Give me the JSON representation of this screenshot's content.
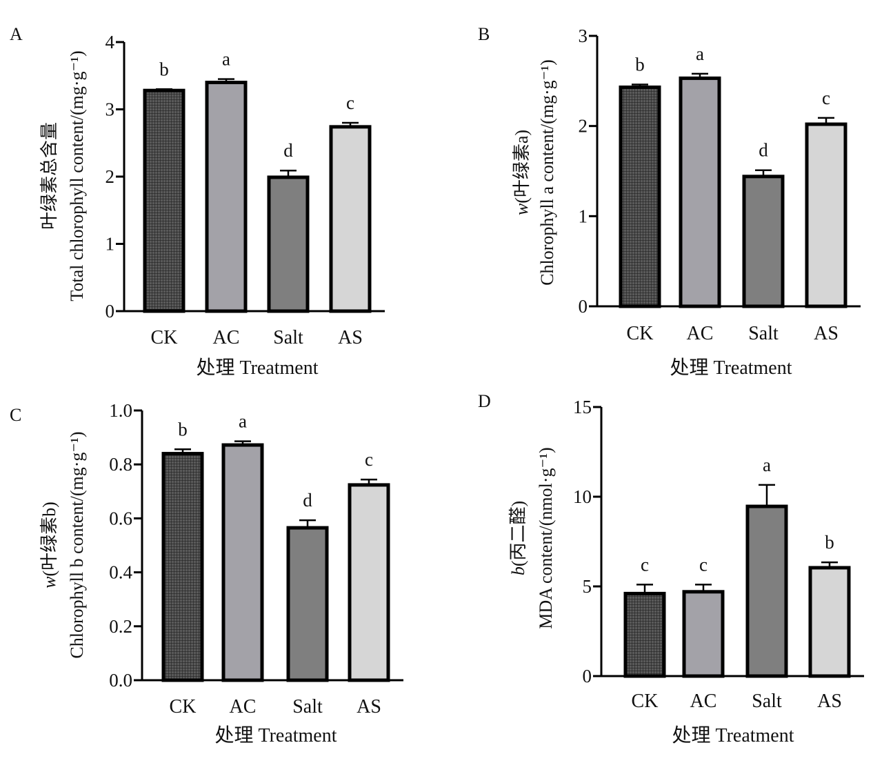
{
  "chart_data": [
    {
      "type": "bar",
      "panel": "A",
      "categories": [
        "CK",
        "AC",
        "Salt",
        "AS"
      ],
      "values": [
        3.28,
        3.4,
        1.99,
        2.74
      ],
      "errors": [
        0.02,
        0.05,
        0.1,
        0.06
      ],
      "significance": [
        "b",
        "a",
        "d",
        "c"
      ],
      "xlabel": "处理 Treatment",
      "ylabel_lines": [
        {
          "var": "",
          "text": "叶绿素总含量"
        },
        {
          "var": "",
          "text": "Total chlorophyll content/(mg·g⁻¹)"
        }
      ],
      "ylim": [
        0,
        4
      ],
      "yticks": [
        "0",
        "1",
        "2",
        "3",
        "4"
      ],
      "ytick_values": [
        0,
        1,
        2,
        3,
        4
      ],
      "grid": false
    },
    {
      "type": "bar",
      "panel": "B",
      "categories": [
        "CK",
        "AC",
        "Salt",
        "AS"
      ],
      "values": [
        2.43,
        2.53,
        1.44,
        2.02
      ],
      "errors": [
        0.03,
        0.05,
        0.07,
        0.07
      ],
      "significance": [
        "b",
        "a",
        "d",
        "c"
      ],
      "xlabel": "处理 Treatment",
      "ylabel_lines": [
        {
          "var": "w",
          "text": "(叶绿素a)"
        },
        {
          "var": "",
          "text": "Chlorophyll a content/(mg·g⁻¹)"
        }
      ],
      "ylim": [
        0,
        3
      ],
      "yticks": [
        "0",
        "1",
        "2",
        "3"
      ],
      "ytick_values": [
        0,
        1,
        2,
        3
      ],
      "grid": false
    },
    {
      "type": "bar",
      "panel": "C",
      "categories": [
        "CK",
        "AC",
        "Salt",
        "AS"
      ],
      "values": [
        0.84,
        0.872,
        0.565,
        0.724
      ],
      "errors": [
        0.016,
        0.014,
        0.028,
        0.02
      ],
      "significance": [
        "b",
        "a",
        "d",
        "c"
      ],
      "xlabel": "处理 Treatment",
      "ylabel_lines": [
        {
          "var": "w",
          "text": "(叶绿素b)"
        },
        {
          "var": "",
          "text": "Chlorophyll b content/(mg·g⁻¹)"
        }
      ],
      "ylim": [
        0,
        1.0
      ],
      "yticks": [
        "0.0",
        "0.2",
        "0.4",
        "0.6",
        "0.8",
        "1.0"
      ],
      "ytick_values": [
        0,
        0.2,
        0.4,
        0.6,
        0.8,
        1.0
      ],
      "grid": false
    },
    {
      "type": "bar",
      "panel": "D",
      "categories": [
        "CK",
        "AC",
        "Salt",
        "AS"
      ],
      "values": [
        4.6,
        4.7,
        9.46,
        6.04
      ],
      "errors": [
        0.5,
        0.4,
        1.2,
        0.3
      ],
      "significance": [
        "c",
        "c",
        "a",
        "b"
      ],
      "xlabel": "处理 Treatment",
      "ylabel_lines": [
        {
          "var": "b",
          "text": "(丙二醛)"
        },
        {
          "var": "",
          "text": "MDA content/(nmol·g⁻¹)"
        }
      ],
      "ylim": [
        0,
        15
      ],
      "yticks": [
        "0",
        "5",
        "10",
        "15"
      ],
      "ytick_values": [
        0,
        5,
        10,
        15
      ],
      "grid": false
    }
  ],
  "colors": {
    "CK": "#3a3a3a",
    "AC": "#a3a2a8",
    "Salt": "#7f7f7f",
    "AS": "#d6d6d6",
    "axis": "#000000"
  }
}
